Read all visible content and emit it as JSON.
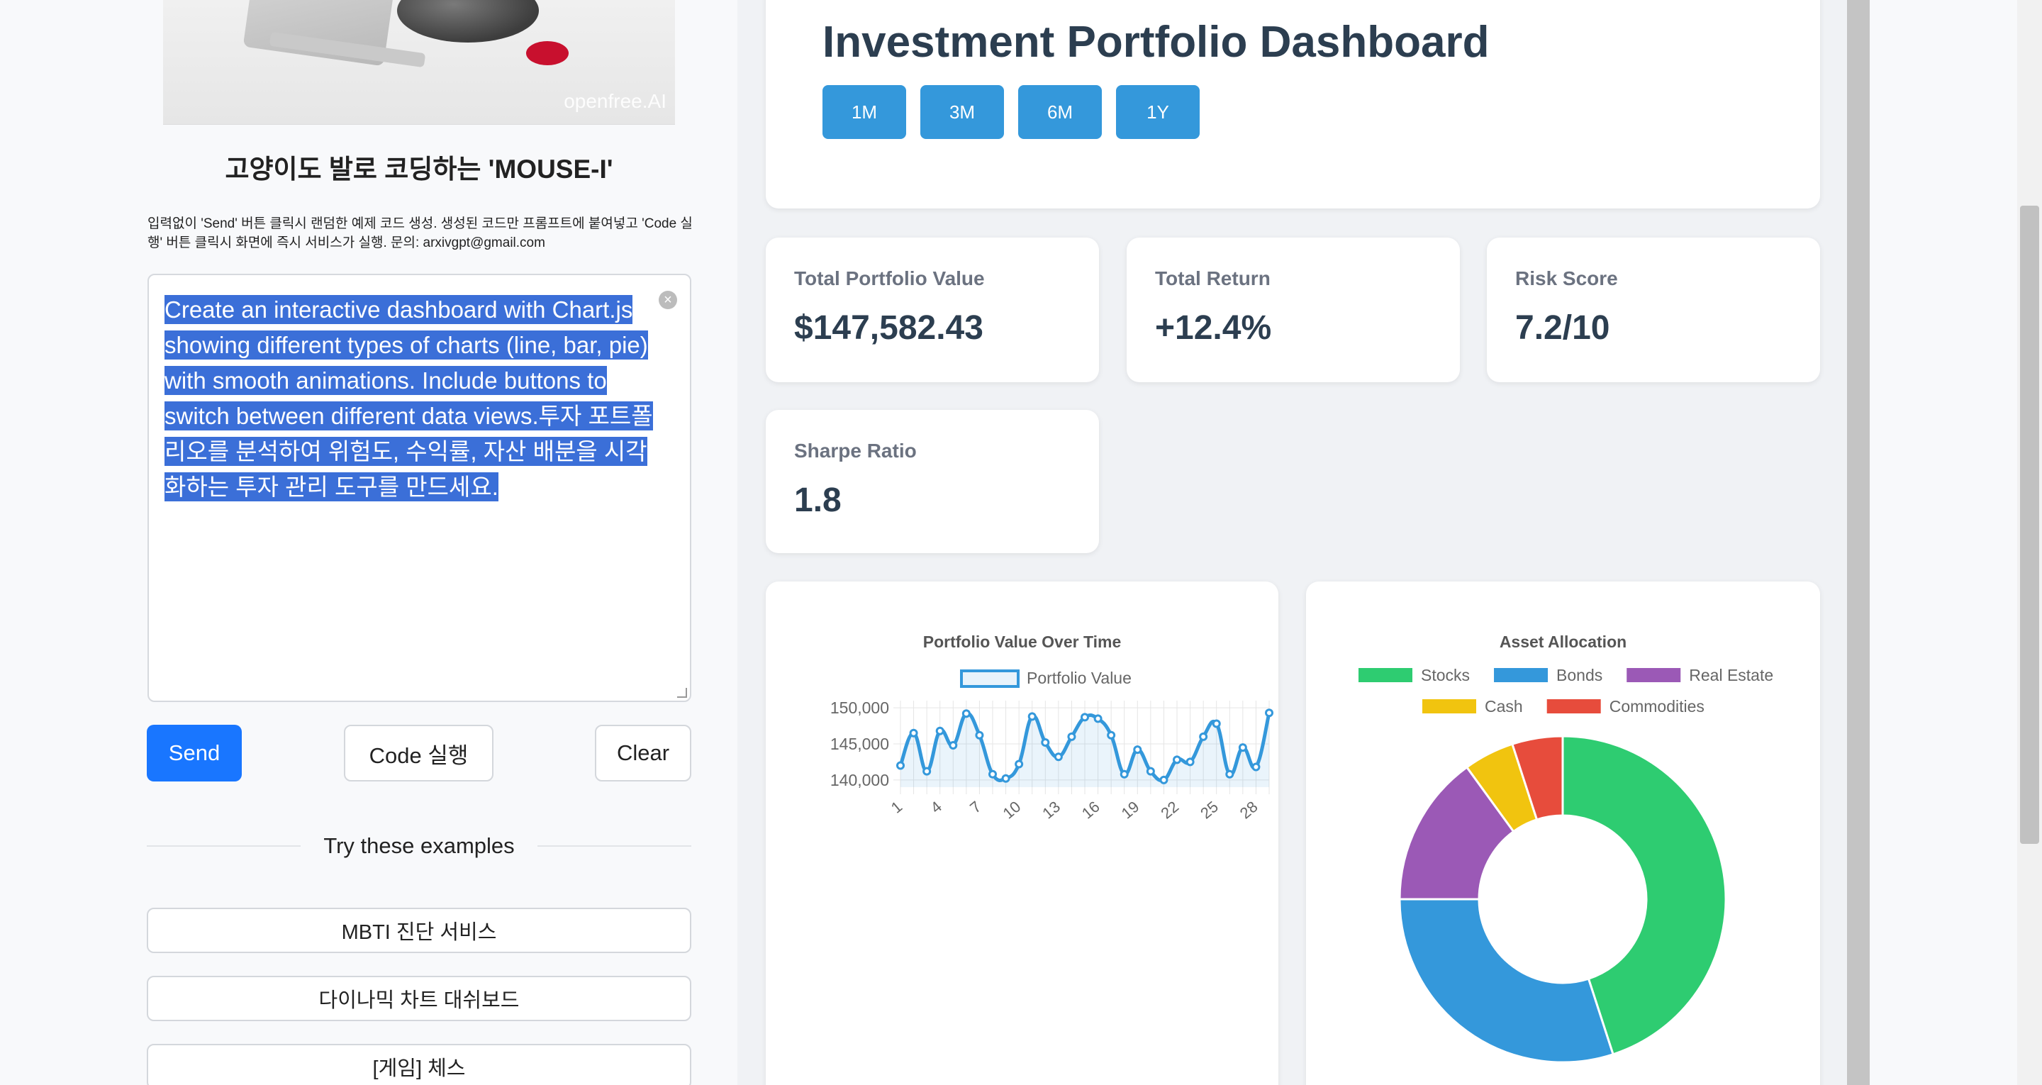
{
  "left": {
    "hero_watermark": "openfree.AI",
    "title": "고양이도 발로 코딩하는 'MOUSE-I'",
    "description": "입력없이 'Send' 버튼 클릭시 랜덤한 예제 코드 생성. 생성된 코드만 프롬프트에 붙여넣고 'Code 실행' 버튼 클릭시 화면에 즉시 서비스가 실행. 문의: arxivgpt@gmail.com",
    "prompt": "Create an interactive dashboard with Chart.js showing different types of charts (line, bar, pie) with smooth animations. Include buttons to switch between different data views.투자 포트폴리오를 분석하여 위험도, 수익률, 자산 배분을 시각화하는 투자 관리 도구를 만드세요.",
    "send_label": "Send",
    "code_label": "Code 실행",
    "clear_label": "Clear",
    "examples_heading": "Try these examples",
    "examples": [
      "MBTI 진단 서비스",
      "다이나믹 차트 대쉬보드",
      "[게임] 체스"
    ]
  },
  "dashboard": {
    "title": "Investment Portfolio Dashboard",
    "time_buttons": [
      "1M",
      "3M",
      "6M",
      "1Y"
    ],
    "stats": [
      {
        "label": "Total Portfolio Value",
        "value": "$147,582.43"
      },
      {
        "label": "Total Return",
        "value": "+12.4%"
      },
      {
        "label": "Risk Score",
        "value": "7.2/10"
      },
      {
        "label": "Sharpe Ratio",
        "value": "1.8"
      }
    ]
  },
  "colors": {
    "accent": "#3498db",
    "send": "#1976ff",
    "stocks": "#2ecc71",
    "bonds": "#3498db",
    "real_estate": "#9b59b6",
    "cash": "#f1c40f",
    "commodities": "#e74c3c"
  },
  "chart_data": [
    {
      "type": "line",
      "title": "Portfolio Value Over Time",
      "series": [
        {
          "name": "Portfolio Value",
          "values": [
            142000,
            146500,
            141200,
            146800,
            144800,
            149200,
            146200,
            140800,
            140200,
            142200,
            148800,
            145200,
            143200,
            146000,
            148700,
            148500,
            146200,
            140800,
            144200,
            141200,
            140000,
            142800,
            142500,
            146000,
            147800,
            140800,
            144500,
            141800,
            149300
          ]
        }
      ],
      "x": [
        1,
        2,
        3,
        4,
        5,
        6,
        7,
        8,
        9,
        10,
        11,
        12,
        13,
        14,
        15,
        16,
        17,
        18,
        19,
        20,
        21,
        22,
        23,
        24,
        25,
        26,
        27,
        28,
        29
      ],
      "x_tick_labels": [
        "1",
        "4",
        "7",
        "10",
        "13",
        "16",
        "19",
        "22",
        "25",
        "28"
      ],
      "ylim": [
        139000,
        151000
      ],
      "y_ticks": [
        140000,
        145000,
        150000
      ],
      "y_tick_labels": [
        "140,000",
        "145,000",
        "150,000"
      ],
      "grid": true,
      "legend": "top"
    },
    {
      "type": "pie",
      "title": "Asset Allocation",
      "categories": [
        "Stocks",
        "Bonds",
        "Real Estate",
        "Cash",
        "Commodities"
      ],
      "values": [
        45,
        30,
        15,
        5,
        5
      ],
      "legend": "top"
    }
  ]
}
